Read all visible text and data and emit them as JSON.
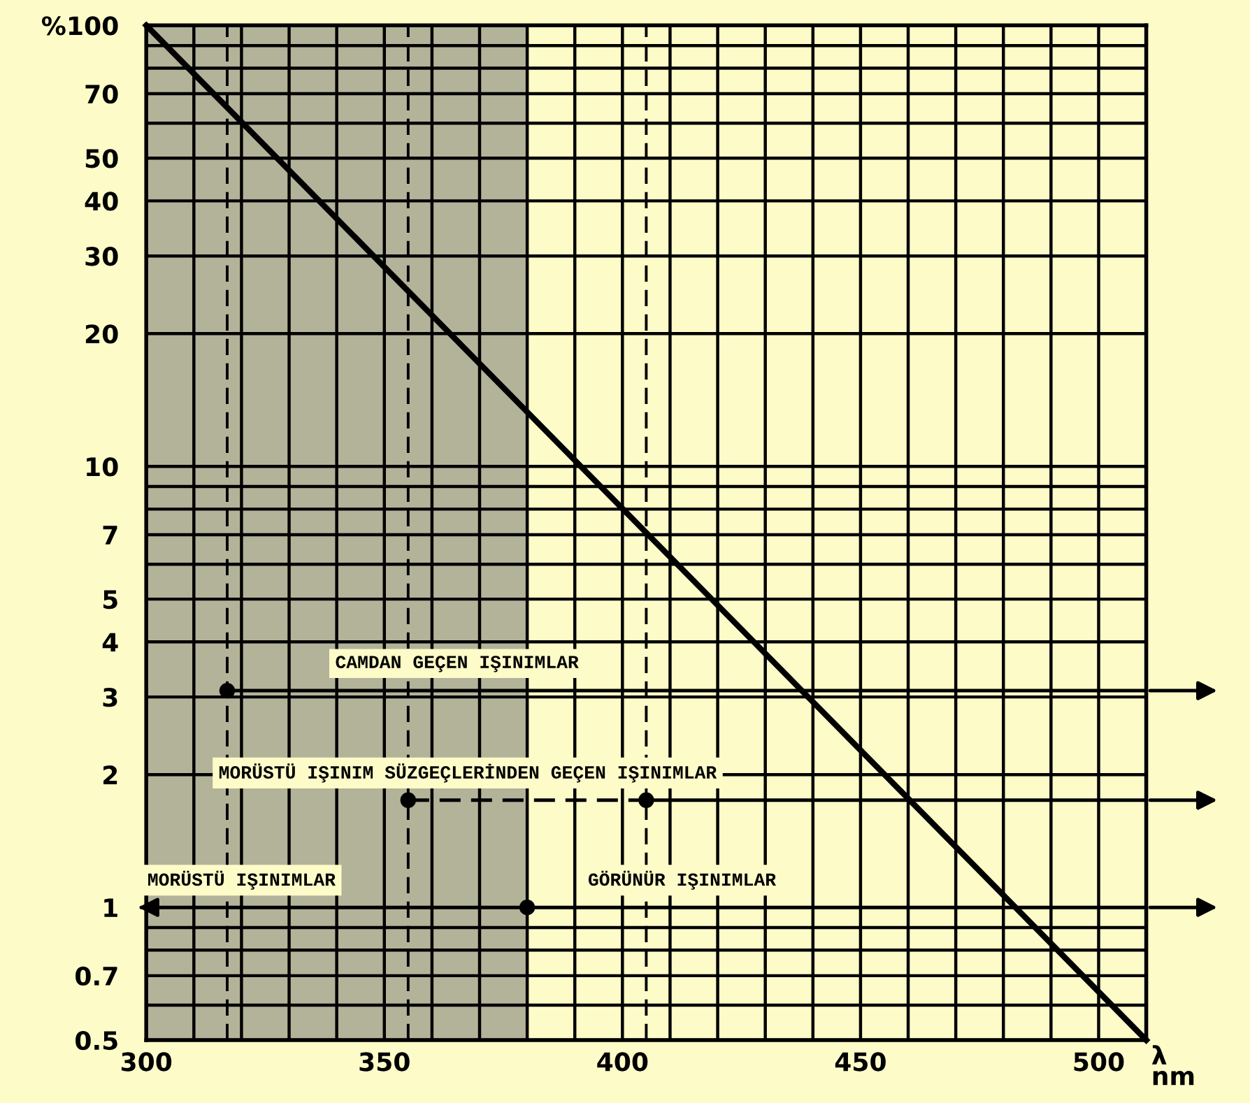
{
  "chart_data": {
    "type": "line",
    "xlabel": "λ\nnm",
    "xlim": [
      300,
      510
    ],
    "xticks": [
      {
        "value": 300,
        "label": "300"
      },
      {
        "value": 310,
        "label": null
      },
      {
        "value": 320,
        "label": null
      },
      {
        "value": 330,
        "label": null
      },
      {
        "value": 340,
        "label": null
      },
      {
        "value": 350,
        "label": "350"
      },
      {
        "value": 360,
        "label": null
      },
      {
        "value": 370,
        "label": null
      },
      {
        "value": 380,
        "label": null
      },
      {
        "value": 390,
        "label": null
      },
      {
        "value": 400,
        "label": "400"
      },
      {
        "value": 410,
        "label": null
      },
      {
        "value": 420,
        "label": null
      },
      {
        "value": 430,
        "label": null
      },
      {
        "value": 440,
        "label": null
      },
      {
        "value": 450,
        "label": "450"
      },
      {
        "value": 460,
        "label": null
      },
      {
        "value": 470,
        "label": null
      },
      {
        "value": 480,
        "label": null
      },
      {
        "value": 490,
        "label": null
      },
      {
        "value": 500,
        "label": "500"
      }
    ],
    "log": "y",
    "ylim": [
      0.5,
      100
    ],
    "yticks": [
      0.5,
      {
        "value": 0.6,
        "label": null
      },
      0.7,
      {
        "value": 0.8,
        "label": null
      },
      {
        "value": 0.9,
        "label": null
      },
      1,
      2,
      3,
      4,
      5,
      {
        "value": 6,
        "label": null
      },
      7,
      {
        "value": 8,
        "label": null
      },
      {
        "value": 9,
        "label": null
      },
      10,
      20,
      30,
      40,
      50,
      {
        "value": 60,
        "label": null
      },
      70,
      {
        "value": 80,
        "label": null
      },
      {
        "value": 90,
        "label": null
      },
      {
        "value": 100,
        "label": "%100"
      }
    ],
    "grid": true,
    "bands": [
      {
        "axis": "x",
        "from": 300,
        "to": 380,
        "color": "#b3b39a"
      }
    ],
    "ref_lines": [
      {
        "axis": "x",
        "value": 317,
        "line_style": "dashed",
        "color": "#000000"
      },
      {
        "axis": "x",
        "value": 355,
        "line_style": "dashed",
        "color": "#000000"
      },
      {
        "axis": "x",
        "value": 405,
        "line_style": "dashed",
        "color": "#000000"
      }
    ],
    "series": [
      {
        "color": "#000000",
        "x": [
          300,
          510
        ],
        "values": [
          100,
          0.5
        ],
        "line_style": "solid"
      },
      {
        "name": "CAMDAN GEÇEN IŞINIMLAR",
        "color": "#000000",
        "x": [
          317,
          510
        ],
        "values": [
          3.1,
          3.1
        ],
        "line_style": "solid"
      },
      {
        "name": "MORÜSTÜ IŞINIM SÜZGEÇLERİNDEN GEÇEN IŞINIMLAR",
        "color": "#000000",
        "x": [
          355,
          405
        ],
        "values": [
          1.75,
          1.75
        ],
        "line_style": "dashed"
      },
      {
        "color": "#000000",
        "x": [
          405,
          510
        ],
        "values": [
          1.75,
          1.75
        ],
        "line_style": "solid"
      },
      {
        "name": "MORÜSTÜ IŞINIMLAR",
        "color": "#000000",
        "x": [
          300,
          380
        ],
        "values": [
          1,
          1
        ],
        "line_style": "solid"
      },
      {
        "name": "GÖRÜNÜR IŞINIMLAR",
        "color": "#000000",
        "x": [
          380,
          510
        ],
        "values": [
          1,
          1
        ],
        "line_style": "solid"
      },
      {
        "type": "scatter",
        "color": "#000000",
        "x": [
          317,
          355,
          405,
          380
        ],
        "values": [
          3.1,
          1.75,
          1.75,
          1
        ],
        "marker": "circle"
      }
    ]
  }
}
